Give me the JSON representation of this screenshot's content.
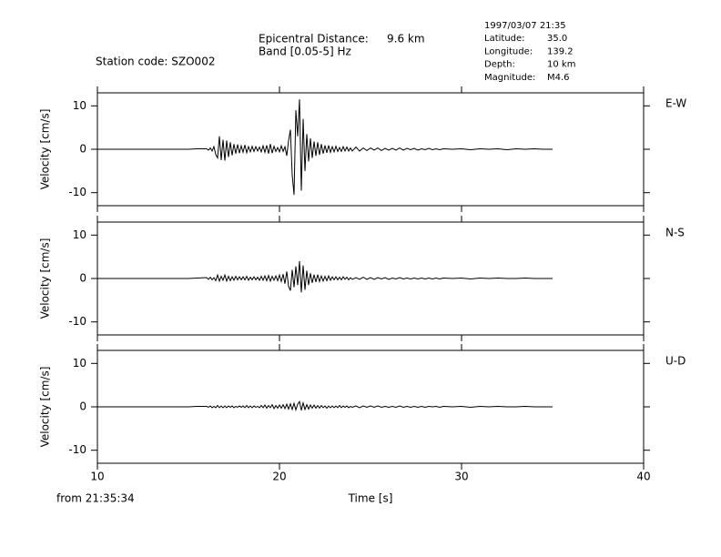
{
  "header": {
    "station": "Station code: SZO002",
    "epicentral_label": "Epicentral Distance:",
    "epicentral_value": "9.6 km",
    "band": "Band [0.05-5] Hz",
    "date": "1997/03/07 21:35",
    "info": [
      {
        "label": "Latitude:",
        "value": "35.0"
      },
      {
        "label": "Longitude:",
        "value": "139.2"
      },
      {
        "label": "Depth:",
        "value": "10 km"
      },
      {
        "label": "Magnitude:",
        "value": "M4.6"
      }
    ],
    "time_origin": "from 21:35:34"
  },
  "chart_data": [
    {
      "type": "line",
      "label": "E-W",
      "y_label": "Velocity [cm/s]",
      "color": "#000000",
      "xlim": [
        10,
        40
      ],
      "xticks": [
        10,
        20,
        30,
        40
      ],
      "ylim": [
        -13,
        13
      ],
      "yticks": [
        -10,
        0,
        10
      ],
      "x": [
        10,
        15,
        15.5,
        16.0,
        16.1,
        16.2,
        16.3,
        16.4,
        16.5,
        16.6,
        16.7,
        16.8,
        16.9,
        17.0,
        17.1,
        17.2,
        17.3,
        17.4,
        17.5,
        17.6,
        17.7,
        17.8,
        17.9,
        18.0,
        18.1,
        18.2,
        18.3,
        18.4,
        18.5,
        18.6,
        18.7,
        18.8,
        18.9,
        19.0,
        19.1,
        19.2,
        19.3,
        19.4,
        19.5,
        19.6,
        19.7,
        19.8,
        19.9,
        20.0,
        20.1,
        20.2,
        20.3,
        20.4,
        20.5,
        20.6,
        20.7,
        20.8,
        20.9,
        21.0,
        21.1,
        21.2,
        21.3,
        21.4,
        21.5,
        21.6,
        21.7,
        21.8,
        21.9,
        22.0,
        22.1,
        22.2,
        22.3,
        22.4,
        22.5,
        22.6,
        22.7,
        22.8,
        22.9,
        23.0,
        23.1,
        23.2,
        23.3,
        23.4,
        23.5,
        23.6,
        23.7,
        23.8,
        23.9,
        24.0,
        24.2,
        24.4,
        24.6,
        24.8,
        25.0,
        25.2,
        25.4,
        25.6,
        25.8,
        26.0,
        26.2,
        26.4,
        26.6,
        26.8,
        27.0,
        27.2,
        27.4,
        27.6,
        27.8,
        28.0,
        28.2,
        28.4,
        28.6,
        28.8,
        29.0,
        29.5,
        30.0,
        30.5,
        31.0,
        31.5,
        32.0,
        32.5,
        33.0,
        33.5,
        34.0,
        34.5,
        35.0
      ],
      "values": [
        0,
        0,
        0.1,
        0.1,
        -0.2,
        0.3,
        -0.4,
        0.6,
        -1.2,
        -2.0,
        3.0,
        -2.5,
        2.2,
        -2.6,
        2.0,
        -1.8,
        1.6,
        -1.4,
        1.2,
        -1.0,
        1.1,
        -0.9,
        0.8,
        -0.7,
        1.0,
        -0.8,
        0.6,
        -0.6,
        0.7,
        -0.5,
        0.6,
        -0.4,
        0.5,
        -0.6,
        0.8,
        -0.7,
        0.9,
        -1.0,
        1.2,
        -0.9,
        0.7,
        -0.5,
        0.4,
        -0.6,
        0.8,
        -0.5,
        0.6,
        -1.5,
        2.0,
        4.5,
        -6.0,
        -10.5,
        9.0,
        3.0,
        11.5,
        -9.5,
        7.0,
        -5.0,
        3.5,
        -2.8,
        2.5,
        -2.0,
        1.8,
        -1.5,
        1.6,
        -1.3,
        1.2,
        -1.0,
        0.9,
        -0.8,
        0.9,
        -0.7,
        0.6,
        -0.6,
        0.7,
        -0.5,
        0.4,
        -0.5,
        0.6,
        -0.4,
        0.5,
        -0.4,
        0.3,
        -0.4,
        0.5,
        -0.4,
        0.3,
        -0.3,
        0.3,
        -0.2,
        0.3,
        -0.3,
        0.2,
        -0.2,
        0.2,
        -0.2,
        0.3,
        -0.2,
        0.2,
        -0.1,
        0.2,
        -0.2,
        0.1,
        -0.1,
        0.2,
        -0.1,
        0.1,
        -0.1,
        0.1,
        0,
        0.1,
        -0.1,
        0.1,
        0,
        0.1,
        -0.1,
        0.1,
        0,
        0.1,
        0,
        0
      ]
    },
    {
      "type": "line",
      "label": "N-S",
      "y_label": "Velocity [cm/s]",
      "color": "#000000",
      "xlim": [
        10,
        40
      ],
      "xticks": [
        10,
        20,
        30,
        40
      ],
      "ylim": [
        -13,
        13
      ],
      "yticks": [
        -10,
        0,
        10
      ],
      "x": [
        10,
        15,
        15.5,
        16.0,
        16.1,
        16.2,
        16.3,
        16.4,
        16.5,
        16.6,
        16.7,
        16.8,
        16.9,
        17.0,
        17.1,
        17.2,
        17.3,
        17.4,
        17.5,
        17.6,
        17.7,
        17.8,
        17.9,
        18.0,
        18.1,
        18.2,
        18.3,
        18.4,
        18.5,
        18.6,
        18.7,
        18.8,
        18.9,
        19.0,
        19.1,
        19.2,
        19.3,
        19.4,
        19.5,
        19.6,
        19.7,
        19.8,
        19.9,
        20.0,
        20.1,
        20.2,
        20.3,
        20.4,
        20.5,
        20.6,
        20.7,
        20.8,
        20.9,
        21.0,
        21.1,
        21.2,
        21.3,
        21.4,
        21.5,
        21.6,
        21.7,
        21.8,
        21.9,
        22.0,
        22.1,
        22.2,
        22.3,
        22.4,
        22.5,
        22.6,
        22.7,
        22.8,
        22.9,
        23.0,
        23.1,
        23.2,
        23.3,
        23.4,
        23.5,
        23.6,
        23.7,
        23.8,
        23.9,
        24.0,
        24.2,
        24.4,
        24.6,
        24.8,
        25.0,
        25.2,
        25.4,
        25.6,
        25.8,
        26.0,
        26.2,
        26.4,
        26.6,
        26.8,
        27.0,
        27.2,
        27.4,
        27.6,
        27.8,
        28.0,
        28.2,
        28.4,
        28.6,
        28.8,
        29.0,
        29.5,
        30.0,
        30.5,
        31.0,
        31.5,
        32.0,
        32.5,
        33.0,
        33.5,
        34.0,
        34.5,
        35.0
      ],
      "values": [
        0,
        0,
        0.1,
        0.2,
        -0.2,
        0.3,
        -0.3,
        0.2,
        -0.5,
        0.8,
        -0.6,
        0.5,
        -0.4,
        0.8,
        -0.6,
        0.5,
        -0.5,
        0.4,
        -0.4,
        0.5,
        -0.3,
        0.4,
        -0.3,
        0.4,
        -0.3,
        0.5,
        -0.4,
        0.3,
        -0.3,
        0.4,
        -0.3,
        0.3,
        -0.4,
        0.5,
        -0.4,
        0.6,
        -0.5,
        0.7,
        -0.6,
        0.5,
        -0.4,
        0.6,
        -0.5,
        0.8,
        -0.7,
        1.0,
        -1.2,
        1.6,
        -1.8,
        -2.8,
        2.0,
        -2.0,
        2.8,
        -1.5,
        4.0,
        -3.2,
        3.0,
        -2.6,
        1.8,
        -1.5,
        1.2,
        -1.0,
        0.9,
        -0.8,
        0.9,
        -0.7,
        0.6,
        -0.6,
        0.5,
        -0.5,
        0.6,
        -0.4,
        0.4,
        -0.3,
        0.4,
        -0.3,
        0.3,
        -0.3,
        0.4,
        -0.2,
        0.3,
        -0.3,
        0.2,
        -0.2,
        0.2,
        -0.2,
        0.3,
        -0.2,
        0.2,
        -0.2,
        0.2,
        -0.1,
        0.2,
        -0.2,
        0.1,
        -0.1,
        0.2,
        -0.1,
        0.1,
        -0.1,
        0.1,
        -0.1,
        0.1,
        -0.1,
        0.1,
        -0.1,
        0.1,
        -0.1,
        0.1,
        0,
        0.1,
        -0.1,
        0.1,
        0,
        0.1,
        0,
        0,
        0.1,
        0,
        0,
        0
      ]
    },
    {
      "type": "line",
      "label": "U-D",
      "y_label": "Velocity [cm/s]",
      "x_label": "Time [s]",
      "color": "#000000",
      "xlim": [
        10,
        40
      ],
      "xticks": [
        10,
        20,
        30,
        40
      ],
      "ylim": [
        -13,
        13
      ],
      "yticks": [
        -10,
        0,
        10
      ],
      "x": [
        10,
        15,
        15.5,
        16.0,
        16.1,
        16.2,
        16.3,
        16.4,
        16.5,
        16.6,
        16.7,
        16.8,
        16.9,
        17.0,
        17.1,
        17.2,
        17.3,
        17.4,
        17.5,
        17.6,
        17.7,
        17.8,
        17.9,
        18.0,
        18.1,
        18.2,
        18.3,
        18.4,
        18.5,
        18.6,
        18.7,
        18.8,
        18.9,
        19.0,
        19.1,
        19.2,
        19.3,
        19.4,
        19.5,
        19.6,
        19.7,
        19.8,
        19.9,
        20.0,
        20.1,
        20.2,
        20.3,
        20.4,
        20.5,
        20.6,
        20.7,
        20.8,
        20.9,
        21.0,
        21.1,
        21.2,
        21.3,
        21.4,
        21.5,
        21.6,
        21.7,
        21.8,
        21.9,
        22.0,
        22.1,
        22.2,
        22.3,
        22.4,
        22.5,
        22.6,
        22.7,
        22.8,
        22.9,
        23.0,
        23.1,
        23.2,
        23.3,
        23.4,
        23.5,
        23.6,
        23.7,
        23.8,
        23.9,
        24.0,
        24.2,
        24.4,
        24.6,
        24.8,
        25.0,
        25.2,
        25.4,
        25.6,
        25.8,
        26.0,
        26.2,
        26.4,
        26.6,
        26.8,
        27.0,
        27.2,
        27.4,
        27.6,
        27.8,
        28.0,
        28.2,
        28.4,
        28.6,
        28.8,
        29.0,
        29.5,
        30.0,
        30.5,
        31.0,
        31.5,
        32.0,
        32.5,
        33.0,
        33.5,
        34.0,
        34.5,
        35.0
      ],
      "values": [
        0,
        0,
        0.1,
        0.1,
        -0.1,
        0.2,
        -0.2,
        0.1,
        -0.2,
        0.3,
        -0.2,
        0.2,
        -0.2,
        0.2,
        -0.2,
        0.2,
        -0.1,
        0.2,
        -0.2,
        0.1,
        -0.1,
        0.2,
        -0.1,
        0.2,
        -0.2,
        0.3,
        -0.2,
        0.2,
        -0.2,
        0.2,
        -0.1,
        0.1,
        -0.2,
        0.3,
        -0.2,
        0.4,
        -0.3,
        0.3,
        -0.2,
        0.5,
        -0.4,
        0.3,
        -0.3,
        0.4,
        -0.3,
        0.5,
        -0.4,
        0.6,
        -0.5,
        0.7,
        -0.6,
        0.8,
        -0.7,
        0.6,
        1.2,
        -0.8,
        0.9,
        -0.6,
        0.5,
        -0.5,
        0.4,
        -0.3,
        0.4,
        -0.3,
        0.3,
        -0.3,
        0.3,
        -0.2,
        0.2,
        -0.3,
        0.2,
        -0.2,
        0.2,
        -0.2,
        0.2,
        -0.2,
        0.3,
        -0.2,
        0.2,
        -0.1,
        0.2,
        -0.2,
        0.1,
        -0.1,
        0.2,
        -0.2,
        0.2,
        -0.1,
        0.2,
        -0.1,
        0.2,
        -0.1,
        0.1,
        -0.1,
        0.1,
        -0.1,
        0.2,
        -0.1,
        0.1,
        -0.1,
        0.1,
        -0.1,
        0.1,
        -0.1,
        0.1,
        0,
        0.1,
        -0.1,
        0.1,
        0,
        0.1,
        -0.1,
        0.1,
        0,
        0.1,
        0,
        0,
        0.1,
        0,
        0,
        0
      ]
    }
  ]
}
